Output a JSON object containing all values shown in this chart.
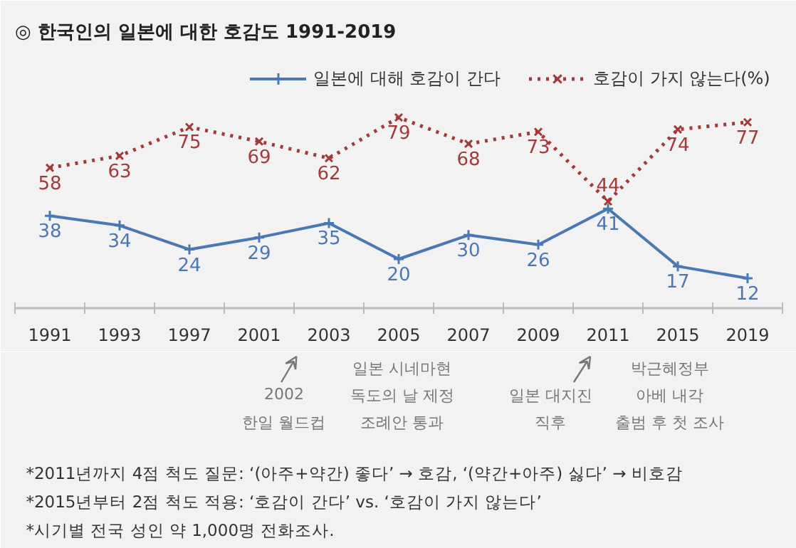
{
  "chart_data": {
    "type": "line",
    "title": "◎  한국인의 일본에 대한 호감도 1991-2019",
    "categories": [
      "1991",
      "1993",
      "1997",
      "2001",
      "2003",
      "2005",
      "2007",
      "2009",
      "2011",
      "2015",
      "2019"
    ],
    "series": [
      {
        "name": "일본에 대해 호감이 간다",
        "color": "#4a78b5",
        "values": [
          38,
          34,
          24,
          29,
          35,
          20,
          30,
          26,
          41,
          17,
          12
        ],
        "marker": "cross",
        "line_style": "solid"
      },
      {
        "name": "호감이 가지 않는다(%)",
        "color": "#a33a3a",
        "values": [
          58,
          63,
          75,
          69,
          62,
          79,
          68,
          73,
          44,
          74,
          77
        ],
        "marker": "x",
        "line_style": "dotted"
      }
    ],
    "data_labels": true,
    "legend": "top right",
    "annotations": [
      "2002\n한일 월드컵",
      "일본 시네마현\n독도의 날 제정\n조례안 통과",
      "일본 대지진\n직후",
      "박근혜정부\n아베 내각\n출범 후 첫 조사",
      "*2011년까지 4점 척도 질문: ‘(아주+약간) 좋다’ → 호감, ‘(약간+아주) 싫다’ → 비호감",
      "*2015년부터 2점 척도 적용: ‘호감이 간다’ vs. ‘호감이 가지 않는다’",
      "*시기별 전국 성인 약 1,000명 전화조사."
    ]
  }
}
